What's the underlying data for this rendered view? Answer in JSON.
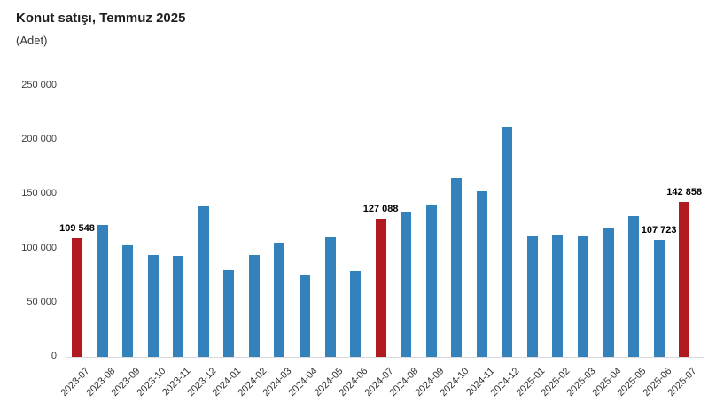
{
  "title": "Konut satışı, Temmuz 2025",
  "subtitle": "(Adet)",
  "colors": {
    "bar_default": "#3482bc",
    "bar_highlight": "#b11a21",
    "axis_line": "#d9d9d9",
    "tick_text": "#404040",
    "value_label_text": "#000000"
  },
  "chart_data": {
    "type": "bar",
    "title": "Konut satışı, Temmuz 2025",
    "ylabel": "(Adet)",
    "xlabel": "",
    "grid": false,
    "legend": "none",
    "ylim": [
      0,
      250000
    ],
    "ytick_step": 50000,
    "ytick_labels": [
      "0",
      "50 000",
      "100 000",
      "150 000",
      "200 000",
      "250 000"
    ],
    "categories": [
      "2023-07",
      "2023-08",
      "2023-09",
      "2023-10",
      "2023-11",
      "2023-12",
      "2024-01",
      "2024-02",
      "2024-03",
      "2024-04",
      "2024-05",
      "2024-06",
      "2024-07",
      "2024-08",
      "2024-09",
      "2024-10",
      "2024-11",
      "2024-12",
      "2025-01",
      "2025-02",
      "2025-03",
      "2025-04",
      "2025-05",
      "2025-06",
      "2025-07"
    ],
    "values": [
      109548,
      122091,
      102656,
      93761,
      93514,
      138577,
      80308,
      93902,
      105476,
      75569,
      110588,
      79313,
      127088,
      134155,
      140919,
      165138,
      153014,
      212637,
      112173,
      112818,
      110795,
      118359,
      130025,
      107723,
      142858
    ],
    "highlighted_categories": [
      "2023-07",
      "2024-07",
      "2025-07"
    ],
    "data_labels": [
      {
        "category": "2023-07",
        "text": "109 548"
      },
      {
        "category": "2024-07",
        "text": "127 088"
      },
      {
        "category": "2025-06",
        "text": "107 723"
      },
      {
        "category": "2025-07",
        "text": "142 858"
      }
    ]
  }
}
